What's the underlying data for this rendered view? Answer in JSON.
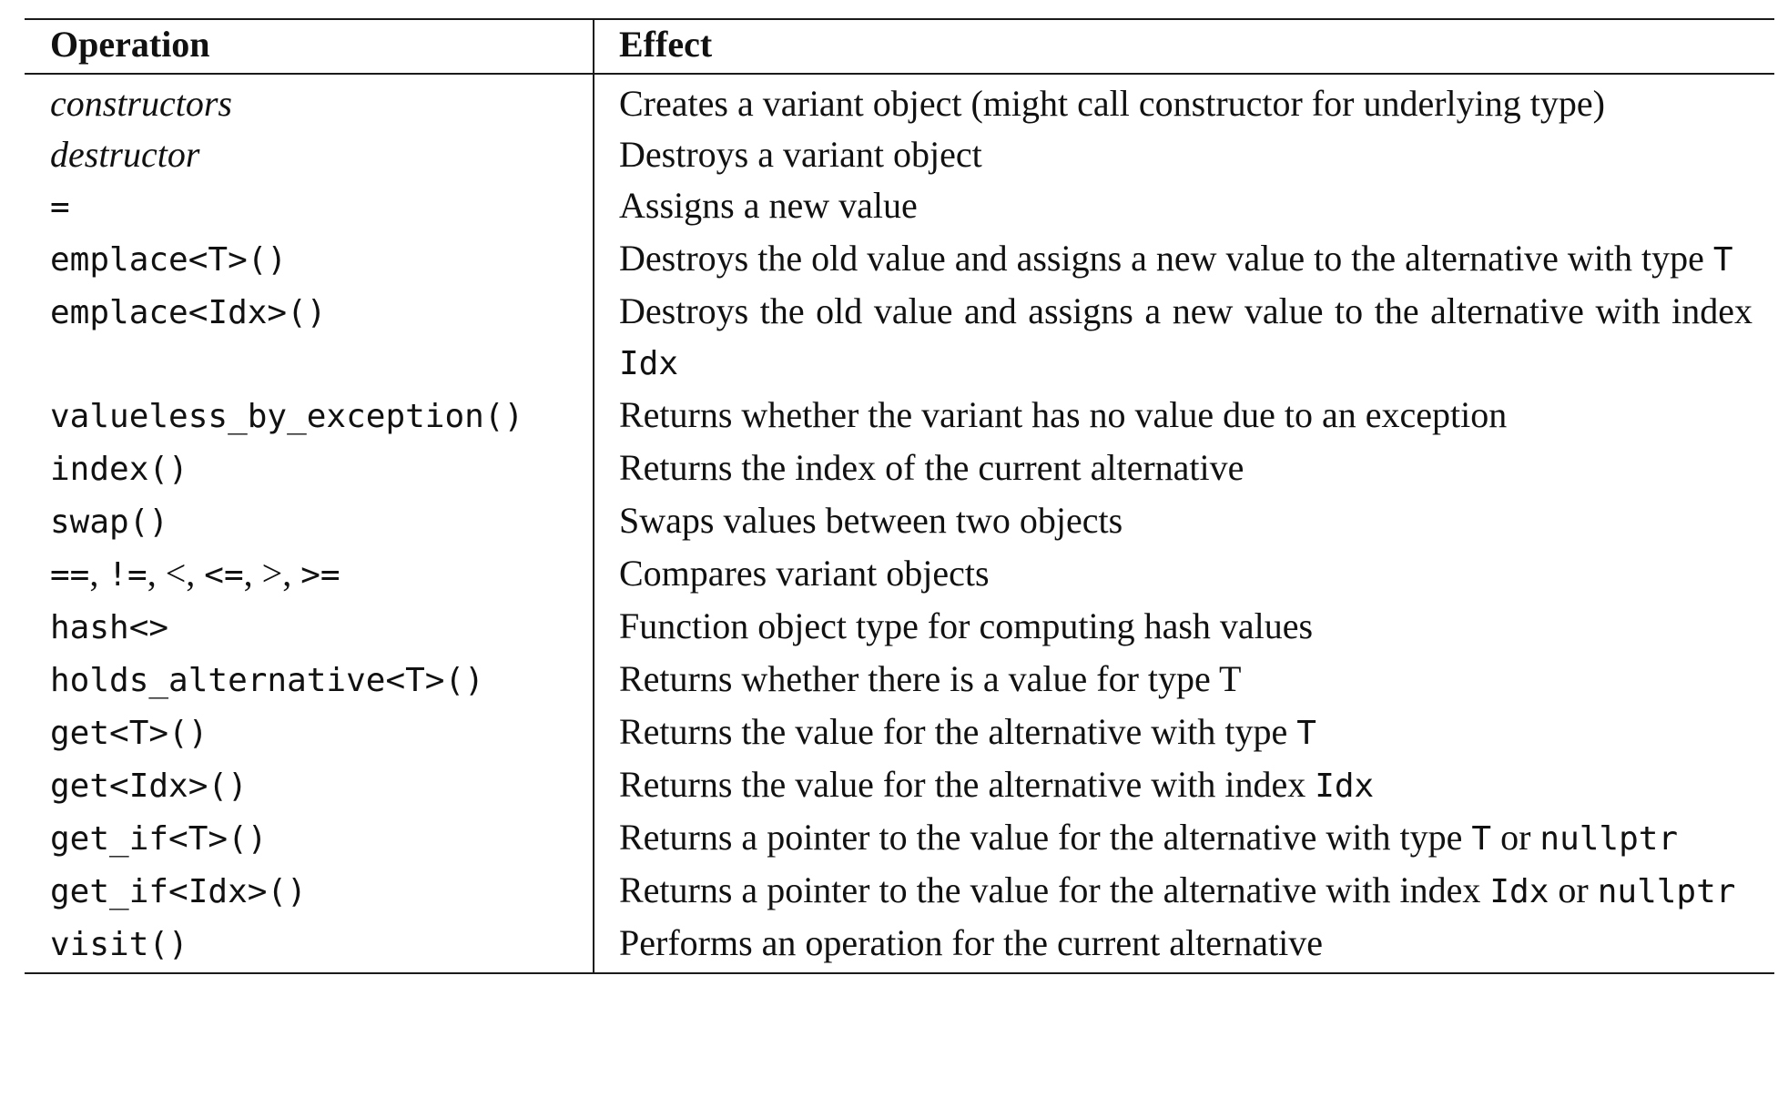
{
  "table": {
    "headers": {
      "operation": "Operation",
      "effect": "Effect"
    },
    "rows": [
      {
        "op": [
          {
            "text": "constructors",
            "style": "italic"
          }
        ],
        "effect": [
          {
            "text": "Creates a variant object (might call constructor for underlying type)",
            "style": "text"
          }
        ]
      },
      {
        "op": [
          {
            "text": "destructor",
            "style": "italic"
          }
        ],
        "effect": [
          {
            "text": "Destroys a variant object",
            "style": "text"
          }
        ]
      },
      {
        "op": [
          {
            "text": "=",
            "style": "code"
          }
        ],
        "effect": [
          {
            "text": "Assigns a new value",
            "style": "text"
          }
        ]
      },
      {
        "op": [
          {
            "text": "emplace<T>()",
            "style": "code"
          }
        ],
        "effect": [
          {
            "text": "Destroys the old value and assigns a new value to the alternative with type ",
            "style": "text"
          },
          {
            "text": "T",
            "style": "code"
          }
        ]
      },
      {
        "op": [
          {
            "text": "emplace<Idx>()",
            "style": "code"
          }
        ],
        "effect": [
          {
            "text": "Destroys the old value and assigns a new value to the alternative with index ",
            "style": "text"
          },
          {
            "text": "Idx",
            "style": "code"
          }
        ]
      },
      {
        "op": [
          {
            "text": "valueless_by_exception()",
            "style": "code"
          }
        ],
        "effect": [
          {
            "text": "Returns whether the variant has no value due to an exception",
            "style": "text"
          }
        ]
      },
      {
        "op": [
          {
            "text": "index()",
            "style": "code"
          }
        ],
        "effect": [
          {
            "text": "Returns the index of the current alternative",
            "style": "text"
          }
        ]
      },
      {
        "op": [
          {
            "text": "swap()",
            "style": "code"
          }
        ],
        "effect": [
          {
            "text": "Swaps values between two objects",
            "style": "text"
          }
        ]
      },
      {
        "op": [
          {
            "text": "==",
            "style": "code"
          },
          {
            "text": ", ",
            "style": "text"
          },
          {
            "text": "!=",
            "style": "code"
          },
          {
            "text": ", <, ",
            "style": "text"
          },
          {
            "text": "<=",
            "style": "code"
          },
          {
            "text": ", >, ",
            "style": "text"
          },
          {
            "text": ">=",
            "style": "code"
          }
        ],
        "effect": [
          {
            "text": "Compares variant objects",
            "style": "text"
          }
        ]
      },
      {
        "op": [
          {
            "text": "hash<>",
            "style": "code"
          }
        ],
        "effect": [
          {
            "text": "Function object type for computing hash values",
            "style": "text"
          }
        ]
      },
      {
        "op": [
          {
            "text": "holds_alternative<T>()",
            "style": "code"
          }
        ],
        "effect": [
          {
            "text": "Returns whether there is a value for type T",
            "style": "text"
          }
        ]
      },
      {
        "op": [
          {
            "text": "get<T>()",
            "style": "code"
          }
        ],
        "effect": [
          {
            "text": "Returns the value for the alternative with type ",
            "style": "text"
          },
          {
            "text": "T",
            "style": "code"
          }
        ]
      },
      {
        "op": [
          {
            "text": "get<Idx>()",
            "style": "code"
          }
        ],
        "effect": [
          {
            "text": "Returns the value for the alternative with index ",
            "style": "text"
          },
          {
            "text": "Idx",
            "style": "code"
          }
        ]
      },
      {
        "op": [
          {
            "text": "get_if<T>()",
            "style": "code"
          }
        ],
        "effect": [
          {
            "text": "Returns a pointer to the value for the alternative with type ",
            "style": "text"
          },
          {
            "text": "T",
            "style": "code"
          },
          {
            "text": " or ",
            "style": "text"
          },
          {
            "text": "nullptr",
            "style": "code"
          }
        ]
      },
      {
        "op": [
          {
            "text": "get_if<Idx>()",
            "style": "code"
          }
        ],
        "effect": [
          {
            "text": "Returns a pointer to the value for the alternative with index ",
            "style": "text"
          },
          {
            "text": "Idx",
            "style": "code"
          },
          {
            "text": " or ",
            "style": "text"
          },
          {
            "text": "nullptr",
            "style": "code"
          }
        ]
      },
      {
        "op": [
          {
            "text": "visit()",
            "style": "code"
          }
        ],
        "effect": [
          {
            "text": "Performs an operation for the current alternative",
            "style": "text"
          }
        ]
      }
    ]
  }
}
